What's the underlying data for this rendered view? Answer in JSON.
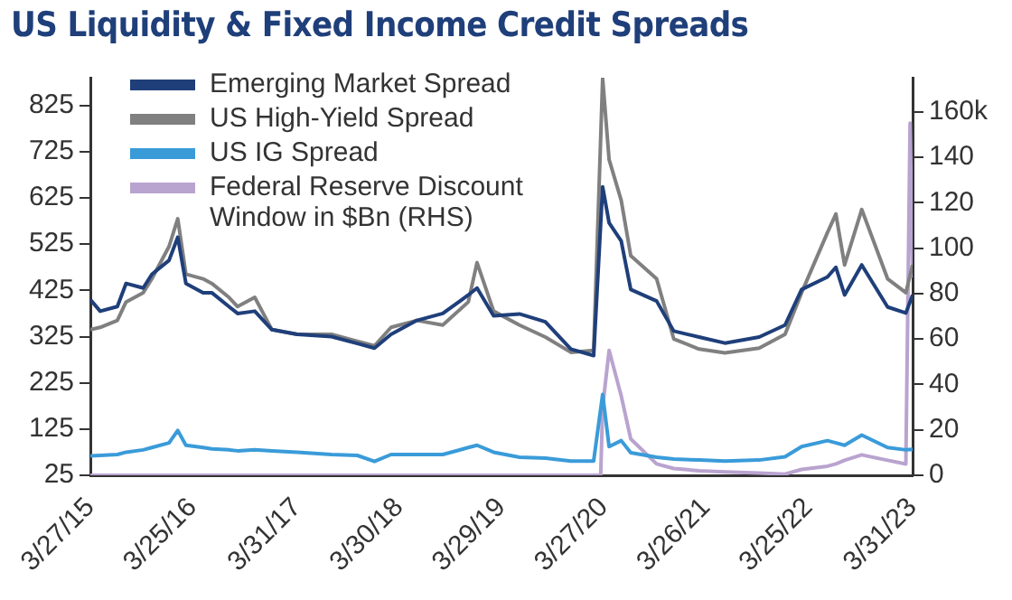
{
  "chart_data": {
    "type": "line",
    "title": "US Liquidity & Fixed Income Credit Spreads",
    "legend": "top left",
    "marker": "none",
    "line_style": "solid",
    "xlim": [
      "2015-03-27",
      "2023-03-31"
    ],
    "xticks": [
      {
        "value": "2015-03-27",
        "label": "3/27/15"
      },
      {
        "value": "2016-03-25",
        "label": "3/25/16"
      },
      {
        "value": "2017-03-31",
        "label": "3/31/17"
      },
      {
        "value": "2018-03-30",
        "label": "3/30/18"
      },
      {
        "value": "2019-03-29",
        "label": "3/29/19"
      },
      {
        "value": "2020-03-27",
        "label": "3/27/20"
      },
      {
        "value": "2021-03-26",
        "label": "3/26/21"
      },
      {
        "value": "2022-03-25",
        "label": "3/25/22"
      },
      {
        "value": "2023-03-31",
        "label": "3/31/23"
      }
    ],
    "ylim": [
      25,
      885
    ],
    "yticks": [
      25,
      125,
      225,
      325,
      425,
      525,
      625,
      725,
      825
    ],
    "y2lim": [
      0,
      175
    ],
    "y2ticks": [
      0,
      20,
      40,
      60,
      80,
      100,
      120,
      140,
      {
        "value": 160,
        "label": "160k"
      }
    ],
    "series": [
      {
        "name": "Emerging Market Spread",
        "color": "#1f3f7a",
        "x": [
          "2015-03-27",
          "2015-05",
          "2015-07",
          "2015-08",
          "2015-10",
          "2015-11",
          "2016-01",
          "2016-02",
          "2016-03",
          "2016-05",
          "2016-06",
          "2016-08",
          "2016-09",
          "2016-11",
          "2017-01",
          "2017-04",
          "2017-08",
          "2017-11",
          "2018-01",
          "2018-03",
          "2018-06",
          "2018-09",
          "2018-12",
          "2019-01",
          "2019-03",
          "2019-06",
          "2019-09",
          "2019-12",
          "2020-02-20",
          "2020-03-23",
          "2020-04-15",
          "2020-05-28",
          "2020-07",
          "2020-10",
          "2020-12",
          "2021-03",
          "2021-06",
          "2021-10",
          "2022-01",
          "2022-03",
          "2022-06",
          "2022-07",
          "2022-08",
          "2022-10",
          "2023-01",
          "2023-03-07",
          "2023-03-31"
        ],
        "values": [
          405,
          380,
          390,
          440,
          430,
          460,
          490,
          540,
          440,
          420,
          420,
          390,
          375,
          380,
          340,
          330,
          325,
          310,
          300,
          330,
          360,
          375,
          415,
          430,
          370,
          374,
          357,
          298,
          284,
          649,
          571,
          532,
          427,
          402,
          337,
          324,
          311,
          324,
          350,
          427,
          454,
          475,
          415,
          480,
          389,
          376,
          415
        ]
      },
      {
        "name": "US High-Yield Spread",
        "color": "#808080",
        "x": [
          "2015-03-27",
          "2015-05",
          "2015-07",
          "2015-08",
          "2015-10",
          "2015-11",
          "2016-01",
          "2016-02",
          "2016-03",
          "2016-05",
          "2016-06",
          "2016-08",
          "2016-09",
          "2016-11",
          "2017-01",
          "2017-04",
          "2017-08",
          "2017-11",
          "2018-01",
          "2018-03",
          "2018-06",
          "2018-09",
          "2018-12",
          "2019-01",
          "2019-03",
          "2019-06",
          "2019-09",
          "2019-12",
          "2020-02-20",
          "2020-03-23",
          "2020-04-15",
          "2020-05-28",
          "2020-07",
          "2020-10",
          "2020-12",
          "2021-03",
          "2021-06",
          "2021-10",
          "2022-01",
          "2022-03",
          "2022-06",
          "2022-07",
          "2022-08",
          "2022-10",
          "2023-01",
          "2023-03-07",
          "2023-03-31"
        ],
        "values": [
          340,
          345,
          360,
          400,
          420,
          450,
          520,
          580,
          460,
          450,
          440,
          410,
          390,
          410,
          340,
          330,
          330,
          315,
          305,
          345,
          360,
          350,
          400,
          485,
          380,
          350,
          324,
          291,
          295,
          883,
          708,
          620,
          500,
          450,
          320,
          298,
          290,
          300,
          330,
          420,
          550,
          590,
          480,
          600,
          450,
          420,
          480
        ]
      },
      {
        "name": "US IG Spread",
        "color": "#3a9bd9",
        "x": [
          "2015-03-27",
          "2015-05",
          "2015-07",
          "2015-08",
          "2015-10",
          "2015-11",
          "2016-01",
          "2016-02",
          "2016-03",
          "2016-05",
          "2016-06",
          "2016-08",
          "2016-09",
          "2016-11",
          "2017-01",
          "2017-04",
          "2017-08",
          "2017-11",
          "2018-01",
          "2018-03",
          "2018-06",
          "2018-09",
          "2018-12",
          "2019-01",
          "2019-03",
          "2019-06",
          "2019-09",
          "2019-12",
          "2020-02-20",
          "2020-03-23",
          "2020-04-15",
          "2020-05-28",
          "2020-07",
          "2020-10",
          "2020-12",
          "2021-03",
          "2021-06",
          "2021-10",
          "2022-01",
          "2022-03",
          "2022-06",
          "2022-07",
          "2022-08",
          "2022-10",
          "2023-01",
          "2023-03-07",
          "2023-03-31"
        ],
        "values": [
          67,
          68,
          70,
          75,
          80,
          85,
          95,
          122,
          90,
          85,
          82,
          80,
          78,
          80,
          78,
          75,
          70,
          68,
          55,
          70,
          70,
          70,
          85,
          90,
          75,
          64,
          62,
          56,
          56,
          200,
          87,
          100,
          74,
          64,
          60,
          58,
          56,
          58,
          65,
          87,
          100,
          95,
          90,
          112,
          85,
          80,
          81
        ]
      },
      {
        "name": "Federal Reserve Discount Window in $Bn (RHS)",
        "color": "#b9a3cf",
        "axis": "y2",
        "x": [
          "2015-03-27",
          "2020-03-16",
          "2020-03-23",
          "2020-04-15",
          "2020-05-28",
          "2020-07",
          "2020-10",
          "2020-12",
          "2021-03",
          "2021-06",
          "2021-10",
          "2022-01",
          "2022-03",
          "2022-06",
          "2022-07",
          "2022-08",
          "2022-10",
          "2023-01",
          "2023-03-07",
          "2023-03-22",
          "2023-03-31"
        ],
        "values": [
          0,
          0,
          30,
          55,
          35,
          16,
          5,
          3,
          2,
          1.5,
          1,
          0.5,
          2.6,
          4,
          5,
          6.6,
          9,
          6.6,
          5,
          155,
          87
        ]
      }
    ]
  }
}
